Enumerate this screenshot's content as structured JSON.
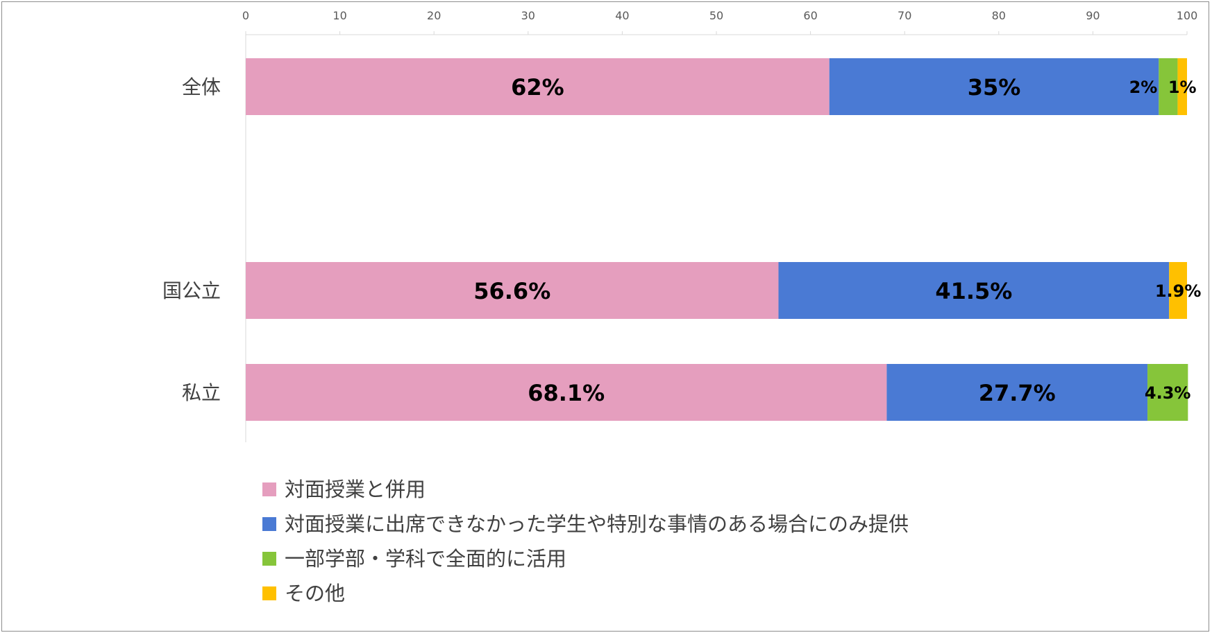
{
  "chart_data": {
    "type": "bar",
    "orientation": "horizontal",
    "stacked": true,
    "categories": [
      "全体",
      "国公立",
      "私立"
    ],
    "series": [
      {
        "name": "対面授業と併用",
        "color": "#E59EBE",
        "values": [
          62,
          56.6,
          68.1
        ],
        "labels": [
          "62%",
          "56.6%",
          "68.1%"
        ]
      },
      {
        "name": "対面授業に出席できなかった学生や特別な事情のある場合にのみ提供",
        "color": "#4A7AD4",
        "values": [
          35,
          41.5,
          27.7
        ],
        "labels": [
          "35%",
          "41.5%",
          "27.7%"
        ]
      },
      {
        "name": "一部学部・学科で全面的に活用",
        "color": "#86C53A",
        "values": [
          2,
          0,
          4.3
        ],
        "labels": [
          "2%",
          "",
          "4.3%"
        ]
      },
      {
        "name": "その他",
        "color": "#FFC000",
        "values": [
          1,
          1.9,
          0
        ],
        "labels": [
          "1%",
          "1.9%",
          ""
        ]
      }
    ],
    "xlim": [
      0,
      100
    ],
    "xticks": [
      "0",
      "10",
      "20",
      "30",
      "40",
      "50",
      "60",
      "70",
      "80",
      "90",
      "100"
    ],
    "axis_position": "top",
    "grid": false,
    "legend_position": "bottom-left"
  }
}
